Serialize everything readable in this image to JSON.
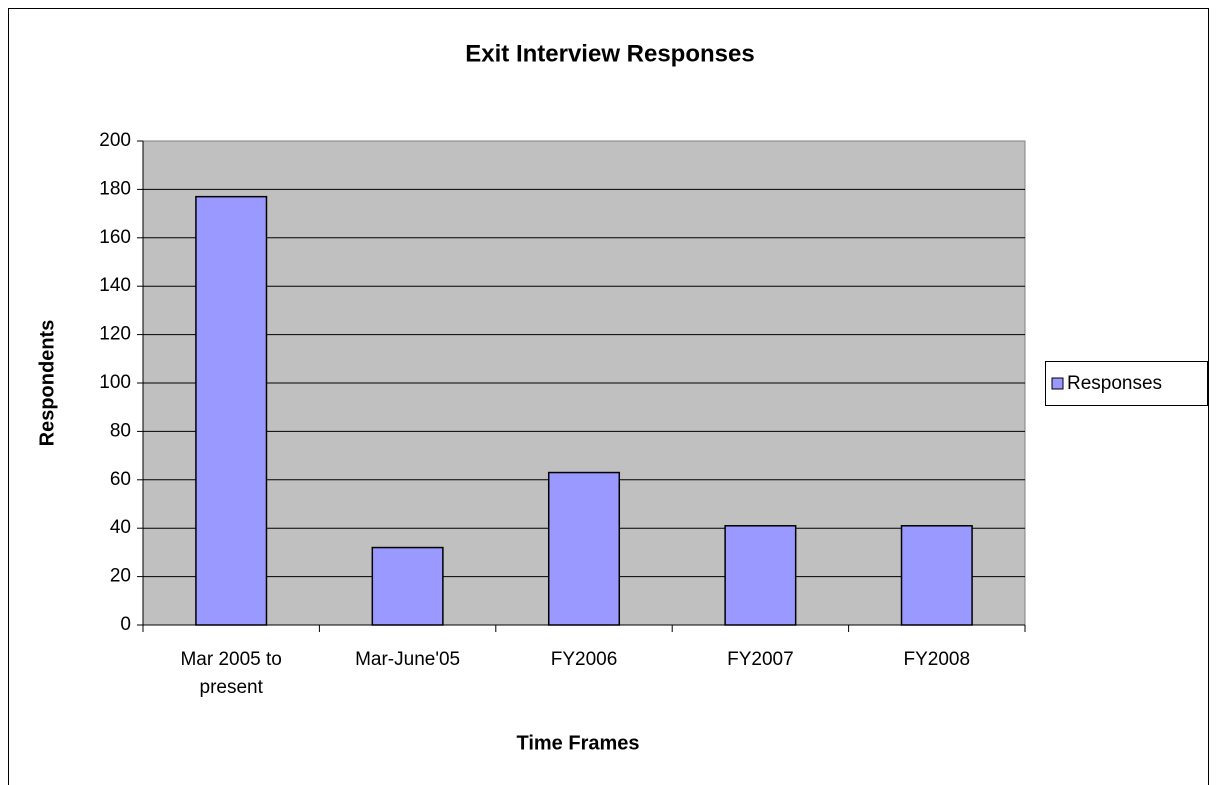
{
  "chart_data": {
    "type": "bar",
    "title": "Exit Interview Responses",
    "x_label": "Time Frames",
    "y_label": "Respondents",
    "categories": [
      "Mar 2005 to present",
      "Mar-June'05",
      "FY2006",
      "FY2007",
      "FY2008"
    ],
    "series": [
      {
        "name": "Responses",
        "color": "#9999ff",
        "values": [
          177,
          32,
          63,
          41,
          41
        ]
      }
    ],
    "ylim": [
      0,
      200
    ],
    "yticks": [
      0,
      20,
      40,
      60,
      80,
      100,
      120,
      140,
      160,
      180,
      200
    ],
    "grid": true,
    "legend": "right"
  }
}
